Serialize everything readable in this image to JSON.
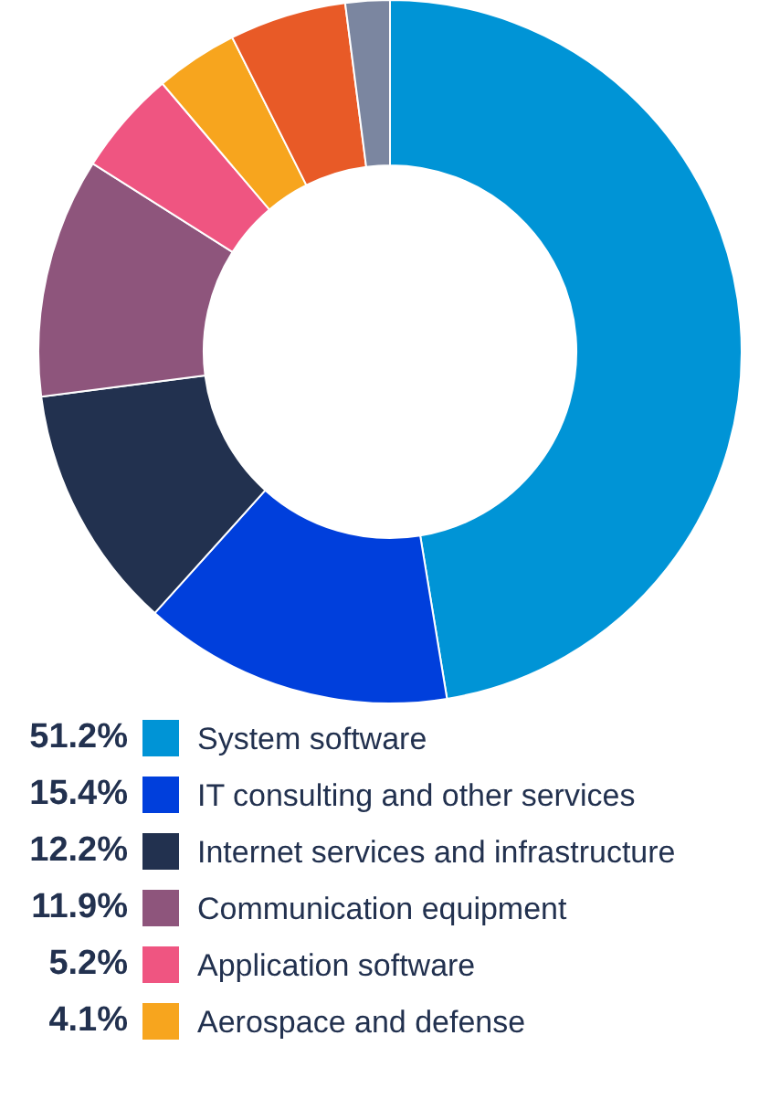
{
  "chart_data": {
    "type": "donut",
    "categories": [
      "System software",
      "IT consulting and other services",
      "Internet services and infrastructure",
      "Communication equipment",
      "Application software",
      "Aerospace and defense",
      null,
      null
    ],
    "values": [
      51.2,
      15.4,
      12.2,
      11.9,
      5.2,
      4.1,
      5.8,
      2.2
    ],
    "value_labels": [
      "51.2%",
      "15.4%",
      "12.2%",
      "11.9%",
      "5.2%",
      "4.1%",
      null,
      null
    ],
    "colors": [
      "#0094d6",
      "#003fdc",
      "#22314f",
      "#8e557c",
      "#ef5581",
      "#f7a51e",
      "#e85a27",
      "#7b86a0"
    ],
    "legend": "bottom"
  }
}
